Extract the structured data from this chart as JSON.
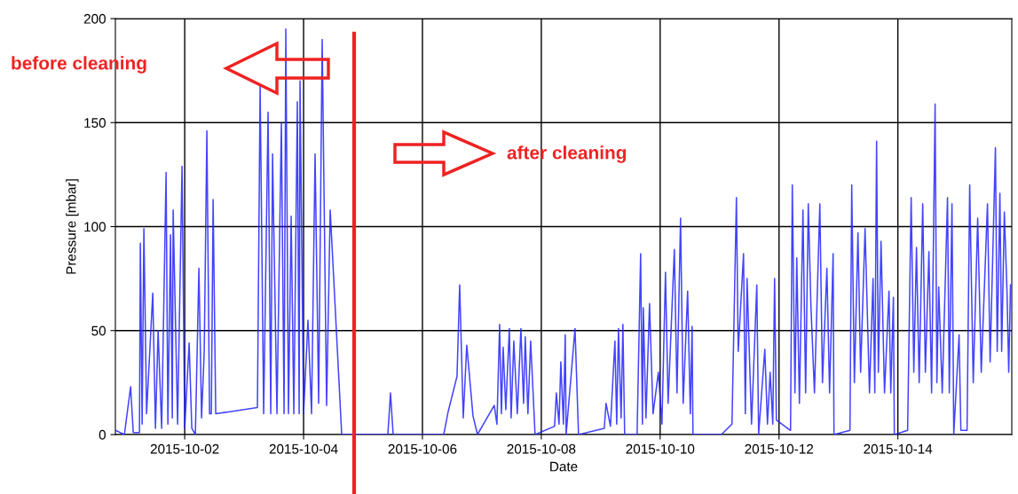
{
  "chart_data": {
    "type": "line",
    "xlabel": "Date",
    "ylabel": "Pressure [mbar]",
    "annotations": [
      "before cleaning",
      "after cleaning"
    ],
    "ref_lines": [
      {
        "axis": "x",
        "value": "2015-10-04T20:25",
        "label": null,
        "color": "#ee2222"
      }
    ],
    "xlim": [
      "2015-09-30T20:00",
      "2015-10-15T22:00"
    ],
    "xticks": [
      "2015-10-02",
      "2015-10-04",
      "2015-10-06",
      "2015-10-08",
      "2015-10-10",
      "2015-10-12",
      "2015-10-14"
    ],
    "ylim": [
      0,
      200
    ],
    "yticks": [
      0,
      50,
      100,
      150,
      200
    ],
    "grid": true,
    "marker": "none",
    "line_style": "solid",
    "series": [
      {
        "color": "#2222ff",
        "x": [
          "2015-09-30T20:04",
          "2015-09-30T23:38",
          "2015-10-01T02:09",
          "2015-10-01T03:13",
          "2015-10-01T05:44",
          "2015-10-01T06:05",
          "2015-10-01T06:48",
          "2015-10-01T07:31",
          "2015-10-01T08:36",
          "2015-10-01T11:06",
          "2015-10-01T12:11",
          "2015-10-01T13:15",
          "2015-10-01T14:41",
          "2015-10-01T16:29",
          "2015-10-01T17:12",
          "2015-10-01T18:16",
          "2015-10-01T18:59",
          "2015-10-01T19:20",
          "2015-10-01T21:08",
          "2015-10-01T22:55",
          "2015-10-02T00:00",
          "2015-10-02T01:47",
          "2015-10-02T02:52",
          "2015-10-02T04:18",
          "2015-10-02T05:44",
          "2015-10-02T06:48",
          "2015-10-02T07:53",
          "2015-10-02T08:57",
          "2015-10-02T10:02",
          "2015-10-02T10:45",
          "2015-10-02T11:28",
          "2015-10-02T12:32",
          "2015-10-03T05:22",
          "2015-10-03T06:27",
          "2015-10-03T07:53",
          "2015-10-03T09:40",
          "2015-10-03T10:45",
          "2015-10-03T11:28",
          "2015-10-03T13:15",
          "2015-10-03T15:02",
          "2015-10-03T16:07",
          "2015-10-03T16:50",
          "2015-10-03T17:54",
          "2015-10-03T18:59",
          "2015-10-03T20:04",
          "2015-10-03T21:29",
          "2015-10-03T22:13",
          "2015-10-03T22:34",
          "2015-10-04T00:00",
          "2015-10-04T01:47",
          "2015-10-04T03:13",
          "2015-10-04T04:39",
          "2015-10-04T06:05",
          "2015-10-04T07:31",
          "2015-10-04T09:18",
          "2015-10-04T10:45",
          "2015-10-04T15:24",
          "2015-10-05T10:02",
          "2015-10-05T11:06",
          "2015-10-05T12:11",
          "2015-10-06T08:36",
          "2015-10-06T10:23",
          "2015-10-06T13:58",
          "2015-10-06T15:02",
          "2015-10-06T16:29",
          "2015-10-06T17:54",
          "2015-10-06T20:25",
          "2015-10-06T22:13",
          "2015-10-07T05:00",
          "2015-10-07T06:05",
          "2015-10-07T07:10",
          "2015-10-07T07:53",
          "2015-10-07T08:36",
          "2015-10-07T09:40",
          "2015-10-07T10:23",
          "2015-10-07T11:06",
          "2015-10-07T11:49",
          "2015-10-07T12:54",
          "2015-10-07T14:19",
          "2015-10-07T15:46",
          "2015-10-07T16:50",
          "2015-10-07T17:31",
          "2015-10-07T18:36",
          "2015-10-07T19:42",
          "2015-10-07T21:29",
          "2015-10-08T05:22",
          "2015-10-08T06:05",
          "2015-10-08T07:10",
          "2015-10-08T07:53",
          "2015-10-08T08:56",
          "2015-10-08T09:40",
          "2015-10-08T10:02",
          "2015-10-08T13:37",
          "2015-10-08T15:02",
          "2015-10-09T01:26",
          "2015-10-09T02:09",
          "2015-10-09T03:56",
          "2015-10-09T05:44",
          "2015-10-09T06:27",
          "2015-10-09T07:10",
          "2015-10-09T08:14",
          "2015-10-09T08:57",
          "2015-10-09T09:40",
          "2015-10-09T14:41",
          "2015-10-09T16:07",
          "2015-10-09T16:50",
          "2015-10-09T17:12",
          "2015-10-09T18:16",
          "2015-10-09T19:42",
          "2015-10-09T21:08",
          "2015-10-09T23:17",
          "2015-10-10T00:43",
          "2015-10-10T02:09",
          "2015-10-10T03:13",
          "2015-10-10T05:44",
          "2015-10-10T06:48",
          "2015-10-10T08:14",
          "2015-10-10T09:18",
          "2015-10-10T11:06",
          "2015-10-10T12:11",
          "2015-10-10T12:54",
          "2015-10-10T13:15",
          "2015-10-11T00:43",
          "2015-10-11T05:00",
          "2015-10-11T06:48",
          "2015-10-11T07:31",
          "2015-10-11T09:40",
          "2015-10-11T10:23",
          "2015-10-11T11:06",
          "2015-10-11T12:54",
          "2015-10-11T15:02",
          "2015-10-11T15:46",
          "2015-10-11T18:16",
          "2015-10-11T19:20",
          "2015-10-11T20:25",
          "2015-10-11T21:29",
          "2015-10-11T22:13",
          "2015-10-11T22:56",
          "2015-10-12T04:39",
          "2015-10-12T05:22",
          "2015-10-12T06:26",
          "2015-10-12T07:10",
          "2015-10-12T08:14",
          "2015-10-12T09:40",
          "2015-10-12T10:45",
          "2015-10-12T11:49",
          "2015-10-12T12:53",
          "2015-10-12T14:19",
          "2015-10-12T16:29",
          "2015-10-12T17:33",
          "2015-10-12T19:20",
          "2015-10-12T20:25",
          "2015-10-12T21:51",
          "2015-10-12T22:12",
          "2015-10-13T04:39",
          "2015-10-13T05:22",
          "2015-10-13T06:26",
          "2015-10-13T07:53",
          "2015-10-13T08:57",
          "2015-10-13T10:45",
          "2015-10-13T12:32",
          "2015-10-13T13:58",
          "2015-10-13T14:41",
          "2015-10-13T15:24",
          "2015-10-13T16:07",
          "2015-10-13T17:12",
          "2015-10-13T18:36",
          "2015-10-13T20:25",
          "2015-10-13T21:08",
          "2015-10-13T22:12",
          "2015-10-13T22:34",
          "2015-10-14T03:56",
          "2015-10-14T05:22",
          "2015-10-14T06:26",
          "2015-10-14T07:31",
          "2015-10-14T08:36",
          "2015-10-14T10:02",
          "2015-10-14T11:06",
          "2015-10-14T12:32",
          "2015-10-14T13:37",
          "2015-10-14T15:02",
          "2015-10-14T15:45",
          "2015-10-14T16:29",
          "2015-10-14T17:55",
          "2015-10-14T20:03",
          "2015-10-14T20:46",
          "2015-10-14T21:51",
          "2015-10-14T22:34",
          "2015-10-15T00:43",
          "2015-10-15T01:26",
          "2015-10-15T03:56",
          "2015-10-15T05:00",
          "2015-10-15T06:26",
          "2015-10-15T08:14",
          "2015-10-15T09:40",
          "2015-10-15T12:11",
          "2015-10-15T13:15",
          "2015-10-15T15:24",
          "2015-10-15T16:07",
          "2015-10-15T17:12",
          "2015-10-15T17:55",
          "2015-10-15T19:00",
          "2015-10-15T20:04",
          "2015-10-15T20:46",
          "2015-10-15T21:29"
        ],
        "values": [
          2,
          0,
          23,
          1,
          1,
          92,
          5,
          99,
          10,
          68,
          3,
          50,
          3,
          126,
          5,
          96,
          8,
          108,
          5,
          129,
          3,
          44,
          3,
          0,
          80,
          8,
          40,
          146,
          10,
          10,
          113,
          10,
          13,
          168,
          10,
          155,
          10,
          135,
          10,
          150,
          10,
          195,
          10,
          105,
          10,
          160,
          10,
          170,
          10,
          55,
          10,
          135,
          15,
          190,
          14,
          108,
          0,
          0,
          20,
          0,
          0,
          11,
          28,
          72,
          8,
          43,
          9,
          0,
          14,
          5,
          53,
          10,
          42,
          12,
          32,
          51,
          8,
          45,
          10,
          51,
          15,
          47,
          10,
          45,
          0,
          4,
          20,
          5,
          35,
          5,
          48,
          0,
          51,
          0,
          3,
          15,
          4,
          45,
          5,
          51,
          8,
          53,
          0,
          0,
          87,
          5,
          61,
          8,
          63,
          10,
          30,
          5,
          78,
          15,
          89,
          20,
          104,
          15,
          69,
          10,
          52,
          0,
          0,
          5,
          114,
          40,
          87,
          10,
          75,
          5,
          72,
          0,
          41,
          5,
          30,
          5,
          75,
          7,
          2,
          120,
          20,
          85,
          15,
          108,
          20,
          111,
          62,
          20,
          111,
          25,
          80,
          20,
          87,
          0,
          2,
          120,
          25,
          97,
          30,
          99,
          20,
          75,
          20,
          141,
          30,
          93,
          20,
          69,
          20,
          66,
          0,
          2,
          114,
          30,
          90,
          25,
          111,
          30,
          88,
          20,
          159,
          25,
          71,
          20,
          114,
          20,
          111,
          0,
          48,
          2,
          2,
          120,
          25,
          104,
          30,
          111,
          35,
          138,
          40,
          116,
          40,
          107,
          69,
          30,
          72
        ]
      }
    ]
  }
}
